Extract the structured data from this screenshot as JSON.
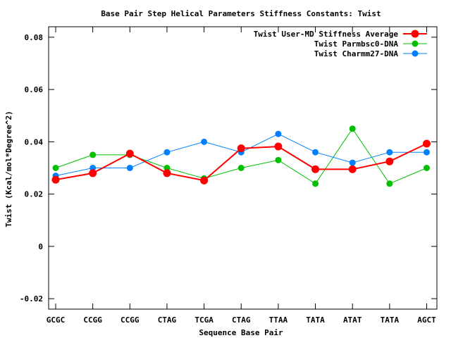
{
  "chart_data": {
    "type": "line",
    "title": "Base Pair Step Helical Parameters Stiffness Constants: Twist",
    "xlabel": "Sequence Base Pair",
    "ylabel": "Twist (Kcal/mol*Degree^2)",
    "categories": [
      "GCGC",
      "CCGG",
      "CCGG",
      "CTAG",
      "TCGA",
      "CTAG",
      "TTAA",
      "TATA",
      "ATAT",
      "TATA",
      "AGCT"
    ],
    "ylim": [
      -0.024,
      0.084
    ],
    "yticks": [
      -0.02,
      0,
      0.02,
      0.04,
      0.06,
      0.08
    ],
    "ytick_labels": [
      "-0.02",
      "0",
      "0.02",
      "0.04",
      "0.06",
      "0.08"
    ],
    "grid": false,
    "legend_position": "top-right",
    "series": [
      {
        "name": "Twist User-MD Stiffness Average",
        "color": "#ff0000",
        "emphasis": true,
        "values": [
          0.0255,
          0.028,
          0.0355,
          0.028,
          0.0252,
          0.0375,
          0.0382,
          0.0295,
          0.0295,
          0.0325,
          0.0393
        ]
      },
      {
        "name": "Twist Parmbsc0-DNA",
        "color": "#00c000",
        "emphasis": false,
        "values": [
          0.03,
          0.035,
          0.035,
          0.03,
          0.026,
          0.03,
          0.033,
          0.024,
          0.045,
          0.024,
          0.03
        ]
      },
      {
        "name": "Twist Charmm27-DNA",
        "color": "#0080ff",
        "emphasis": false,
        "values": [
          0.027,
          0.03,
          0.03,
          0.036,
          0.04,
          0.036,
          0.043,
          0.036,
          0.032,
          0.036,
          0.036
        ]
      }
    ]
  }
}
